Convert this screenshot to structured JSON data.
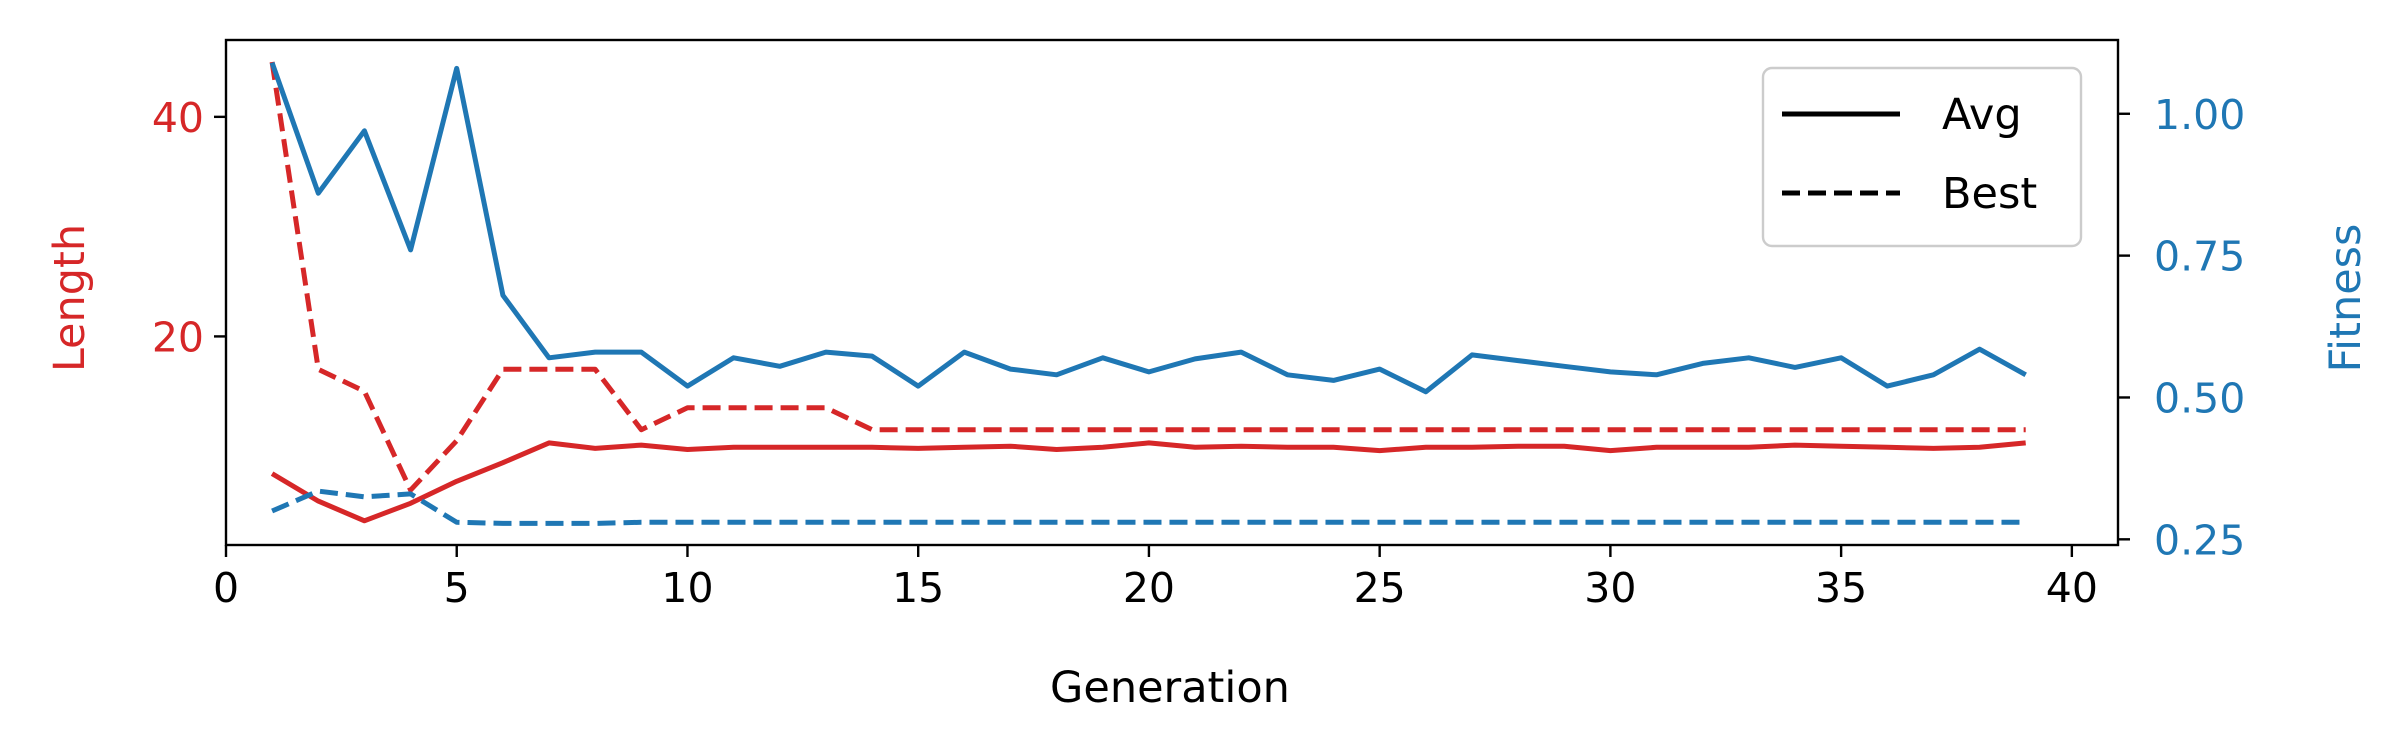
{
  "chart_data": {
    "type": "line",
    "title": "",
    "xlabel": "Generation",
    "ylabel_left": "Length",
    "ylabel_right": "Fitness",
    "xlim": [
      0,
      41
    ],
    "ylim_left": [
      1,
      47
    ],
    "ylim_right": [
      0.24,
      1.13
    ],
    "xticks": [
      0,
      5,
      10,
      15,
      20,
      25,
      30,
      35,
      40
    ],
    "yticks_left": [
      20,
      40
    ],
    "yticks_right": [
      0.25,
      0.5,
      0.75,
      1.0
    ],
    "ytick_labels_right": [
      "0.25",
      "0.50",
      "0.75",
      "1.00"
    ],
    "legend": {
      "position": "top-right",
      "entries": [
        {
          "label": "Avg",
          "style": "solid"
        },
        {
          "label": "Best",
          "style": "dashed"
        }
      ]
    },
    "grid": false,
    "colors": {
      "length": "#d62728",
      "fitness": "#1f77b4"
    },
    "x": [
      1,
      2,
      3,
      4,
      5,
      6,
      7,
      8,
      9,
      10,
      11,
      12,
      13,
      14,
      15,
      16,
      17,
      18,
      19,
      20,
      21,
      22,
      23,
      24,
      25,
      26,
      27,
      28,
      29,
      30,
      31,
      32,
      33,
      34,
      35,
      36,
      37,
      38,
      39
    ],
    "series": [
      {
        "name": "Avg",
        "axis": "left",
        "metric": "Length",
        "style": "solid",
        "color": "#d62728",
        "values": [
          7.5,
          5.0,
          3.2,
          4.8,
          6.8,
          8.5,
          10.3,
          9.8,
          10.1,
          9.7,
          9.9,
          9.9,
          9.9,
          9.9,
          9.8,
          9.9,
          10.0,
          9.7,
          9.9,
          10.3,
          9.9,
          10.0,
          9.9,
          9.9,
          9.6,
          9.9,
          9.9,
          10.0,
          10.0,
          9.6,
          9.9,
          9.9,
          9.9,
          10.1,
          10.0,
          9.9,
          9.8,
          9.9,
          10.3
        ]
      },
      {
        "name": "Best",
        "axis": "left",
        "metric": "Length",
        "style": "dashed",
        "color": "#d62728",
        "values": [
          45.0,
          17.0,
          15.0,
          6.0,
          10.5,
          17.0,
          17.0,
          17.0,
          11.5,
          13.5,
          13.5,
          13.5,
          13.5,
          11.5,
          11.5,
          11.5,
          11.5,
          11.5,
          11.5,
          11.5,
          11.5,
          11.5,
          11.5,
          11.5,
          11.5,
          11.5,
          11.5,
          11.5,
          11.5,
          11.5,
          11.5,
          11.5,
          11.5,
          11.5,
          11.5,
          11.5,
          11.5,
          11.5,
          11.5
        ]
      },
      {
        "name": "Avg",
        "axis": "right",
        "metric": "Fitness",
        "style": "solid",
        "color": "#1f77b4",
        "values": [
          1.09,
          0.86,
          0.97,
          0.76,
          1.08,
          0.68,
          0.57,
          0.58,
          0.58,
          0.52,
          0.57,
          0.555,
          0.58,
          0.573,
          0.52,
          0.58,
          0.55,
          0.54,
          0.57,
          0.545,
          0.568,
          0.58,
          0.54,
          0.53,
          0.55,
          0.51,
          0.575,
          0.565,
          0.555,
          0.545,
          0.54,
          0.56,
          0.57,
          0.553,
          0.57,
          0.52,
          0.54,
          0.585,
          0.54
        ]
      },
      {
        "name": "Best",
        "axis": "right",
        "metric": "Fitness",
        "style": "dashed",
        "color": "#1f77b4",
        "values": [
          0.3,
          0.335,
          0.325,
          0.33,
          0.28,
          0.278,
          0.278,
          0.278,
          0.28,
          0.28,
          0.28,
          0.28,
          0.28,
          0.28,
          0.28,
          0.28,
          0.28,
          0.28,
          0.28,
          0.28,
          0.28,
          0.28,
          0.28,
          0.28,
          0.28,
          0.28,
          0.28,
          0.28,
          0.28,
          0.28,
          0.28,
          0.28,
          0.28,
          0.28,
          0.28,
          0.28,
          0.28,
          0.28,
          0.28
        ]
      }
    ]
  }
}
